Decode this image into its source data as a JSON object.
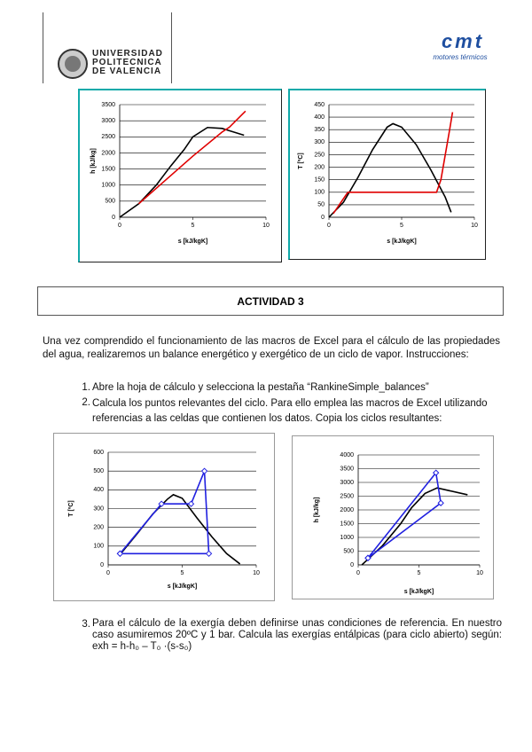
{
  "header": {
    "university": [
      "UNIVERSIDAD",
      "POLITECNICA",
      "DE VALENCIA"
    ],
    "logo": "cmt",
    "logo_subtitle": "motores térmicos"
  },
  "chart_data": [
    {
      "type": "line",
      "xlabel": "s [kJ/kgK]",
      "ylabel": "h [kJ/kg]",
      "xlim": [
        0,
        10
      ],
      "ylim": [
        0,
        3500
      ],
      "xticks": [
        0,
        5,
        10
      ],
      "yticks": [
        0,
        500,
        1000,
        1500,
        2000,
        2500,
        3000,
        3500
      ],
      "grid": true,
      "series": [
        {
          "color": "#000000",
          "x": [
            0,
            1.3,
            2.5,
            3.5,
            4.4,
            5,
            6,
            7,
            8.5
          ],
          "values": [
            0,
            420,
            1000,
            1600,
            2100,
            2500,
            2790,
            2760,
            2550
          ]
        },
        {
          "color": "#e00000",
          "x": [
            1.3,
            3,
            5,
            7,
            7.5,
            8.6
          ],
          "values": [
            420,
            1100,
            1900,
            2650,
            2800,
            3300
          ]
        }
      ]
    },
    {
      "type": "line",
      "xlabel": "s [kJ/kgK]",
      "ylabel": "T [ºC]",
      "xlim": [
        0,
        10
      ],
      "ylim": [
        0,
        450
      ],
      "xticks": [
        0,
        5,
        10
      ],
      "yticks": [
        0,
        50,
        100,
        150,
        200,
        250,
        300,
        350,
        400,
        450
      ],
      "grid": true,
      "series": [
        {
          "color": "#000000",
          "x": [
            0,
            1,
            2,
            3,
            4,
            4.4,
            5,
            6,
            7,
            8,
            8.4
          ],
          "values": [
            0,
            60,
            160,
            270,
            360,
            374,
            360,
            290,
            190,
            80,
            20
          ]
        },
        {
          "color": "#e00000",
          "x": [
            0.3,
            1.3,
            7.4,
            7.7,
            8,
            8.3,
            8.5
          ],
          "values": [
            15,
            100,
            100,
            150,
            250,
            350,
            420
          ]
        }
      ]
    },
    {
      "type": "line",
      "xlabel": "s [kJ/kgK]",
      "ylabel": "T [ºC]",
      "xlim": [
        0,
        10
      ],
      "ylim": [
        0,
        600
      ],
      "xticks": [
        0,
        5,
        10
      ],
      "yticks": [
        0,
        100,
        200,
        300,
        400,
        500,
        600
      ],
      "grid": true,
      "series": [
        {
          "color": "#000000",
          "x": [
            0.8,
            2,
            3,
            4,
            4.4,
            5,
            6,
            7,
            8,
            8.9
          ],
          "values": [
            55,
            170,
            270,
            350,
            374,
            355,
            250,
            150,
            60,
            5
          ]
        },
        {
          "color": "#2020e0",
          "marker": "diamond",
          "x": [
            0.8,
            3.6,
            5.6,
            6.5,
            6.8,
            0.8
          ],
          "values": [
            60,
            325,
            325,
            500,
            60,
            60
          ]
        }
      ]
    },
    {
      "type": "line",
      "xlabel": "s [kJ/kgK]",
      "ylabel": "h [kJ/kg]",
      "xlim": [
        0,
        10
      ],
      "ylim": [
        0,
        4000
      ],
      "xticks": [
        0,
        5,
        10
      ],
      "yticks": [
        0,
        500,
        1000,
        1500,
        2000,
        2500,
        3000,
        3500,
        4000
      ],
      "grid": true,
      "series": [
        {
          "color": "#000000",
          "x": [
            0.3,
            2,
            3.5,
            4.4,
            5.5,
            6.5,
            7.5,
            9
          ],
          "values": [
            0,
            700,
            1500,
            2084,
            2600,
            2800,
            2700,
            2550
          ]
        },
        {
          "color": "#2020e0",
          "marker": "diamond",
          "x": [
            0.8,
            6.4,
            6.8,
            0.8
          ],
          "values": [
            250,
            3350,
            2250,
            250
          ]
        }
      ]
    }
  ],
  "activity": {
    "title": "ACTIVIDAD 3",
    "intro": "Una vez comprendido el funcionamiento de las macros de Excel para el cálculo de las propiedades del agua, realizaremos un balance energético y exergético de un ciclo de vapor. Instrucciones:",
    "steps": [
      {
        "number": "1.",
        "text": "Abre la hoja de cálculo y selecciona la pestaña “RankineSimple_balances”"
      },
      {
        "number": "2.",
        "text": "Calcula los puntos relevantes del ciclo. Para ello emplea las macros de Excel utilizando referencias a las celdas que contienen los datos. Copia los ciclos resultantes:"
      },
      {
        "number": "3.",
        "text": "Para el cálculo de la exergía deben definirse unas condiciones de referencia. En nuestro caso asumiremos 20ºC y 1 bar. Calcula las exergías entálpicas (para ciclo abierto) según: exh = h-h₀ – T₀ ·(s-s₀)"
      }
    ]
  }
}
